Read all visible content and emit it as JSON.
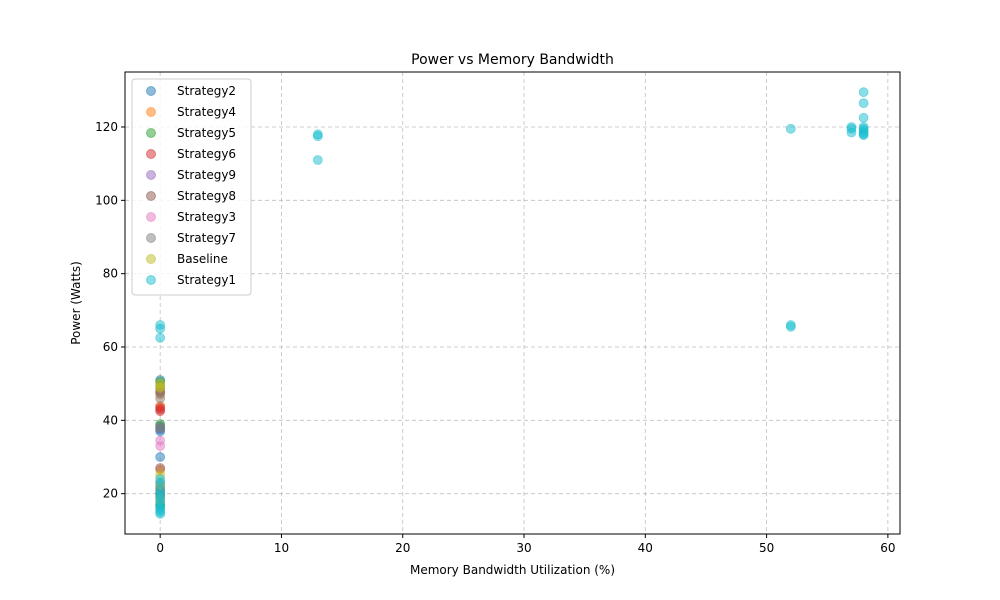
{
  "chart_data": {
    "type": "scatter",
    "title": "Power vs Memory Bandwidth",
    "xlabel": "Memory Bandwidth Utilization (%)",
    "ylabel": "Power (Watts)",
    "xlim": [
      -2.9,
      61
    ],
    "ylim": [
      9,
      135
    ],
    "xticks": [
      0,
      10,
      20,
      30,
      40,
      50,
      60
    ],
    "yticks": [
      20,
      40,
      60,
      80,
      100,
      120
    ],
    "grid": true,
    "legend_position": "top-left",
    "series": [
      {
        "name": "Strategy2",
        "color": "#1f77b4",
        "points": [
          [
            0,
            51
          ],
          [
            0,
            49.5
          ],
          [
            0,
            48
          ],
          [
            0,
            38.5
          ],
          [
            0,
            37.5
          ],
          [
            0,
            37
          ],
          [
            0,
            30
          ],
          [
            0,
            22
          ],
          [
            0,
            19.5
          ],
          [
            0,
            17
          ]
        ]
      },
      {
        "name": "Strategy4",
        "color": "#ff7f0e",
        "points": [
          [
            0,
            49
          ],
          [
            0,
            47
          ],
          [
            0,
            44
          ],
          [
            0,
            26.5
          ],
          [
            0,
            21
          ],
          [
            0,
            18
          ]
        ]
      },
      {
        "name": "Strategy5",
        "color": "#2ca02c",
        "points": [
          [
            0,
            50.5
          ],
          [
            0,
            39
          ],
          [
            0,
            38
          ],
          [
            0,
            20
          ],
          [
            0,
            16.5
          ]
        ]
      },
      {
        "name": "Strategy6",
        "color": "#d62728",
        "points": [
          [
            0,
            43.5
          ],
          [
            0,
            42.5
          ],
          [
            0,
            43
          ]
        ]
      },
      {
        "name": "Strategy9",
        "color": "#9467bd",
        "points": [
          [
            0,
            48.5
          ],
          [
            0,
            37.8
          ],
          [
            0,
            19
          ]
        ]
      },
      {
        "name": "Strategy8",
        "color": "#8c564b",
        "points": [
          [
            0,
            47.5
          ],
          [
            0,
            27
          ],
          [
            0,
            20.5
          ]
        ]
      },
      {
        "name": "Strategy3",
        "color": "#e377c2",
        "points": [
          [
            0,
            34.5
          ],
          [
            0,
            33
          ],
          [
            0,
            23
          ]
        ]
      },
      {
        "name": "Strategy7",
        "color": "#7f7f7f",
        "points": [
          [
            0,
            46
          ],
          [
            0,
            38.2
          ],
          [
            0,
            21.5
          ]
        ]
      },
      {
        "name": "Baseline",
        "color": "#bcbd22",
        "points": [
          [
            0,
            50
          ],
          [
            0,
            49.2
          ],
          [
            0,
            48.8
          ],
          [
            0,
            25
          ],
          [
            0,
            22.5
          ],
          [
            0,
            18.5
          ]
        ]
      },
      {
        "name": "Strategy1",
        "color": "#17becf",
        "points": [
          [
            0,
            66
          ],
          [
            0,
            65
          ],
          [
            0,
            62.5
          ],
          [
            0,
            24
          ],
          [
            0,
            23
          ],
          [
            0,
            21
          ],
          [
            0,
            20
          ],
          [
            0,
            19
          ],
          [
            0,
            18
          ],
          [
            0,
            17
          ],
          [
            0,
            16
          ],
          [
            0,
            15.5
          ],
          [
            0,
            15
          ],
          [
            0,
            14.5
          ],
          [
            13,
            118
          ],
          [
            13,
            117.5
          ],
          [
            13,
            111
          ],
          [
            52,
            119.5
          ],
          [
            52,
            66
          ],
          [
            52,
            65.5
          ],
          [
            57,
            120
          ],
          [
            57,
            119.5
          ],
          [
            57,
            118.5
          ],
          [
            58,
            129.5
          ],
          [
            58,
            126.5
          ],
          [
            58,
            122.5
          ],
          [
            58,
            120
          ],
          [
            58,
            119.5
          ],
          [
            58,
            119
          ],
          [
            58,
            118.5
          ],
          [
            58,
            118
          ],
          [
            58,
            117.8
          ]
        ]
      }
    ]
  }
}
